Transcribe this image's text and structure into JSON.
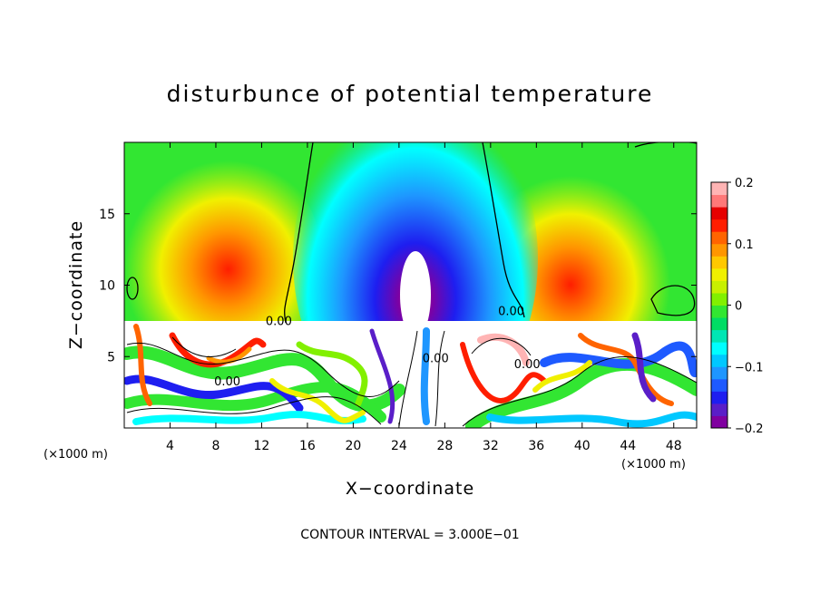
{
  "chart_data": {
    "type": "heatmap",
    "title": "disturbunce of potential temperature",
    "xlabel": "X−coordinate",
    "ylabel": "Z−coordinate",
    "x_unit_label": "(×1000 m)",
    "y_unit_label": "(×1000 m)",
    "xlim": [
      0,
      50
    ],
    "ylim": [
      0,
      20
    ],
    "x_ticks": [
      4,
      8,
      12,
      16,
      20,
      24,
      28,
      32,
      36,
      40,
      44,
      48
    ],
    "x_tick_labels": [
      "4",
      "8",
      "12",
      "16",
      "20",
      "24",
      "28",
      "32",
      "36",
      "40",
      "44",
      "48"
    ],
    "y_ticks": [
      5,
      10,
      15
    ],
    "y_tick_labels": [
      "5",
      "10",
      "15"
    ],
    "contour_labels": [
      {
        "text": "0.00",
        "x": 13.5,
        "z": 7.2
      },
      {
        "text": "0.00",
        "x": 9.0,
        "z": 3.0
      },
      {
        "text": "0.00",
        "x": 33.8,
        "z": 7.9
      },
      {
        "text": "0.00",
        "x": 35.2,
        "z": 4.2
      },
      {
        "text": "0.00",
        "x": 27.2,
        "z": 4.6
      }
    ],
    "colorbar": {
      "min": -0.2,
      "max": 0.2,
      "tick_values": [
        0.2,
        0.1,
        0,
        -0.1,
        -0.2
      ],
      "tick_labels": [
        "0.2",
        "0.1",
        "0",
        "−0.1",
        "−0.2"
      ],
      "colors": [
        "#8000a0",
        "#5a1ec8",
        "#1e1ef0",
        "#1e5aff",
        "#1e96ff",
        "#00c8ff",
        "#00ffff",
        "#00e6b4",
        "#00dc64",
        "#32e632",
        "#82f000",
        "#c8f000",
        "#f0f000",
        "#ffc800",
        "#ff9600",
        "#ff6400",
        "#ff1e00",
        "#e60000",
        "#ff7878",
        "#ffb4b4"
      ]
    },
    "footer_text": "CONTOUR INTERVAL = 3.000E−01"
  }
}
